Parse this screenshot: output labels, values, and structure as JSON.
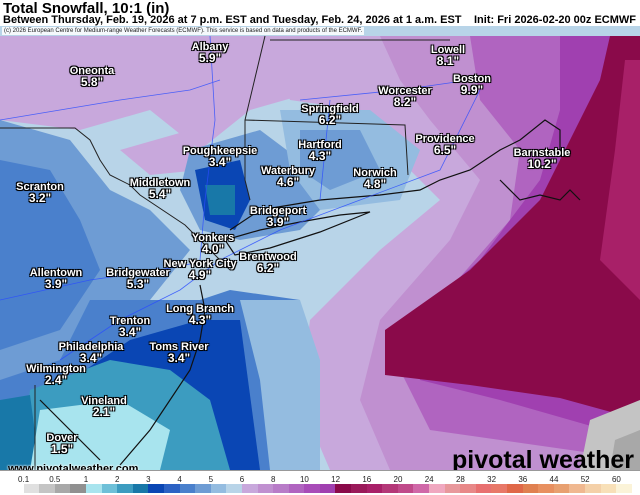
{
  "header": {
    "title": "Total Snowfall, 10:1 (in)",
    "subtitle": "Between Thursday, Feb. 19, 2026 at 7 p.m. EST and Tuesday, Feb. 24, 2026 at 1 a.m. EST",
    "init": "Init: Fri 2026-02-20 00z ECMWF"
  },
  "copyright": "(c) 2026 European Centre for Medium-range Weather Forecasts (ECMWF). This service is based on data and products of the ECMWF.",
  "cities": [
    {
      "name": "Albany",
      "value": "5.9\""
    },
    {
      "name": "Oneonta",
      "value": "5.8\""
    },
    {
      "name": "Poughkeepsie",
      "value": "3.4\""
    },
    {
      "name": "Middletown",
      "value": "5.4\""
    },
    {
      "name": "Scranton",
      "value": "3.2\""
    },
    {
      "name": "Waterbury",
      "value": "4.6\""
    },
    {
      "name": "Hartford",
      "value": "4.3\""
    },
    {
      "name": "Springfield",
      "value": "6.2\""
    },
    {
      "name": "Worcester",
      "value": "8.2\""
    },
    {
      "name": "Lowell",
      "value": "8.1\""
    },
    {
      "name": "Boston",
      "value": "9.9\""
    },
    {
      "name": "Providence",
      "value": "6.5\""
    },
    {
      "name": "Norwich",
      "value": "4.8\""
    },
    {
      "name": "Barnstable",
      "value": "10.2\""
    },
    {
      "name": "Bridgeport",
      "value": "3.9\""
    },
    {
      "name": "Yonkers",
      "value": "4.0\""
    },
    {
      "name": "New York City",
      "value": "4.9\""
    },
    {
      "name": "Brentwood",
      "value": "6.2\""
    },
    {
      "name": "Bridgewater",
      "value": "5.3\""
    },
    {
      "name": "Allentown",
      "value": "3.9\""
    },
    {
      "name": "Long Branch",
      "value": "4.3\""
    },
    {
      "name": "Trenton",
      "value": "3.4\""
    },
    {
      "name": "Toms River",
      "value": "3.4\""
    },
    {
      "name": "Philadelphia",
      "value": "3.4\""
    },
    {
      "name": "Wilmington",
      "value": "2.4\""
    },
    {
      "name": "Vineland",
      "value": "2.1\""
    },
    {
      "name": "Dover",
      "value": "1.5\""
    }
  ],
  "watermark": {
    "site": "www.pivotalweather.com",
    "logo": "pivotal weather"
  },
  "colorbar": {
    "unit": "in",
    "labels": [
      "0.1",
      "0.5",
      "1",
      "2",
      "3",
      "4",
      "5",
      "6",
      "8",
      "10",
      "12",
      "16",
      "20",
      "24",
      "28",
      "32",
      "36",
      "44",
      "52",
      "60"
    ],
    "colors": [
      "#ffffff",
      "#e0e0e0",
      "#c4c4c4",
      "#a8a8a8",
      "#909090",
      "#a8e4ee",
      "#6ec0d8",
      "#3c9cc0",
      "#1878a8",
      "#0a46b4",
      "#2c62c4",
      "#4a80cc",
      "#6e9cd4",
      "#94bce0",
      "#b8d4e8",
      "#c8a8dc",
      "#c090d0",
      "#b87cc8",
      "#b064c0",
      "#a84cb8",
      "#a040b0",
      "#8a0a4a",
      "#9a1a5a",
      "#a82068",
      "#b43878",
      "#c04a8a",
      "#d068a8",
      "#f0a8c0",
      "#e8989c",
      "#e88888",
      "#e87070",
      "#e87868",
      "#e06848",
      "#e08050",
      "#e89060",
      "#e8a070",
      "#f0b890",
      "#f4d0a8",
      "#f8e0b8",
      "#fbf3d8"
    ]
  }
}
